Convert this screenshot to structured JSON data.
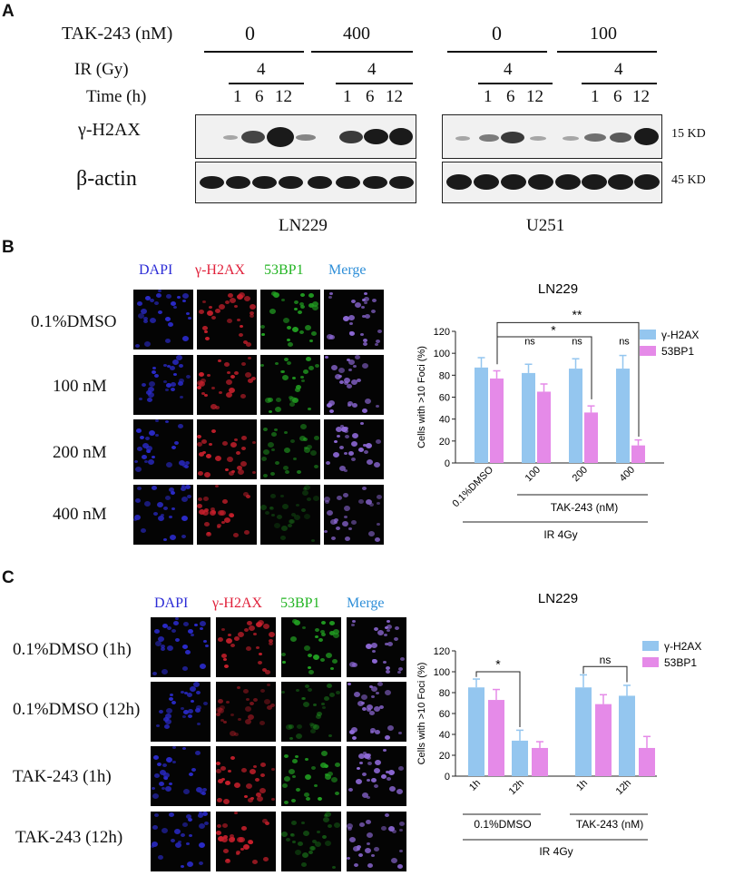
{
  "panel_a": {
    "letter": "A",
    "row_labels": {
      "drug": "TAK-243 (nM)",
      "ir": "IR (Gy)",
      "time": "Time (h)"
    },
    "ln229": {
      "dose_0": "0",
      "dose_treated": "400",
      "ir_dose_1": "4",
      "ir_dose_2": "4",
      "cell_line": "LN229"
    },
    "u251": {
      "dose_0": "0",
      "dose_treated": "100",
      "ir_dose_1": "4",
      "ir_dose_2": "4",
      "cell_line": "U251"
    },
    "time_points": [
      "1",
      "6",
      "12"
    ],
    "proteins": {
      "gh2ax": "γ-H2AX",
      "actin": "β-actin"
    },
    "sizes": {
      "gh2ax": "15 KD",
      "actin": "45 KD"
    }
  },
  "panel_b": {
    "letter": "B",
    "channels": {
      "dapi": "DAPI",
      "gh2ax": "γ-H2AX",
      "bp1": "53BP1",
      "merge": "Merge"
    },
    "rows": [
      "0.1%DMSO",
      "100 nM",
      "200 nM",
      "400 nM"
    ],
    "colors": {
      "dapi": "#2b2bd6",
      "gh2ax": "#e0203a",
      "bp1": "#22b422",
      "merge": "#2f8fd8",
      "bar_gh2ax": "#94c6ef",
      "bar_53bp1": "#e58ae8"
    },
    "chart_data": {
      "type": "bar",
      "title": "LN229",
      "ylabel": "Cells with >10 Foci (%)",
      "ylim": [
        0,
        120
      ],
      "yticks": [
        "0",
        "20",
        "40",
        "60",
        "80",
        "100",
        "120"
      ],
      "categories": [
        "0.1%DMSO",
        "100",
        "200",
        "400"
      ],
      "series": [
        {
          "name": "γ-H2AX",
          "values": [
            87,
            82,
            86,
            86
          ],
          "errors": [
            9,
            8,
            9,
            12
          ]
        },
        {
          "name": "53BP1",
          "values": [
            77,
            65,
            46,
            16
          ],
          "errors": [
            7,
            7,
            6,
            5
          ]
        }
      ],
      "annotations": [
        "ns",
        "ns",
        "ns",
        "*",
        "**"
      ],
      "group_labels": {
        "drug": "TAK-243 (nM)",
        "ir": "IR 4Gy"
      }
    }
  },
  "panel_c": {
    "letter": "C",
    "channels": {
      "dapi": "DAPI",
      "gh2ax": "γ-H2AX",
      "bp1": "53BP1",
      "merge": "Merge"
    },
    "rows": [
      "0.1%DMSO (1h)",
      "0.1%DMSO (12h)",
      "TAK-243 (1h)",
      "TAK-243 (12h)"
    ],
    "chart_data": {
      "type": "bar",
      "title": "LN229",
      "ylabel": "Cells with >10 Foci (%)",
      "ylim": [
        0,
        120
      ],
      "yticks": [
        "0",
        "20",
        "40",
        "60",
        "80",
        "100",
        "120"
      ],
      "categories": [
        "1h",
        "12h",
        "1h",
        "12h"
      ],
      "series": [
        {
          "name": "γ-H2AX",
          "values": [
            85,
            34,
            85,
            77
          ],
          "errors": [
            8,
            10,
            12,
            10
          ]
        },
        {
          "name": "53BP1",
          "values": [
            73,
            27,
            69,
            27
          ],
          "errors": [
            10,
            6,
            9,
            11
          ]
        }
      ],
      "annotations": [
        "*",
        "ns"
      ],
      "group_labels": {
        "dmso": "0.1%DMSO",
        "drug": "TAK-243 (nM)",
        "ir": "IR 4Gy"
      }
    }
  }
}
